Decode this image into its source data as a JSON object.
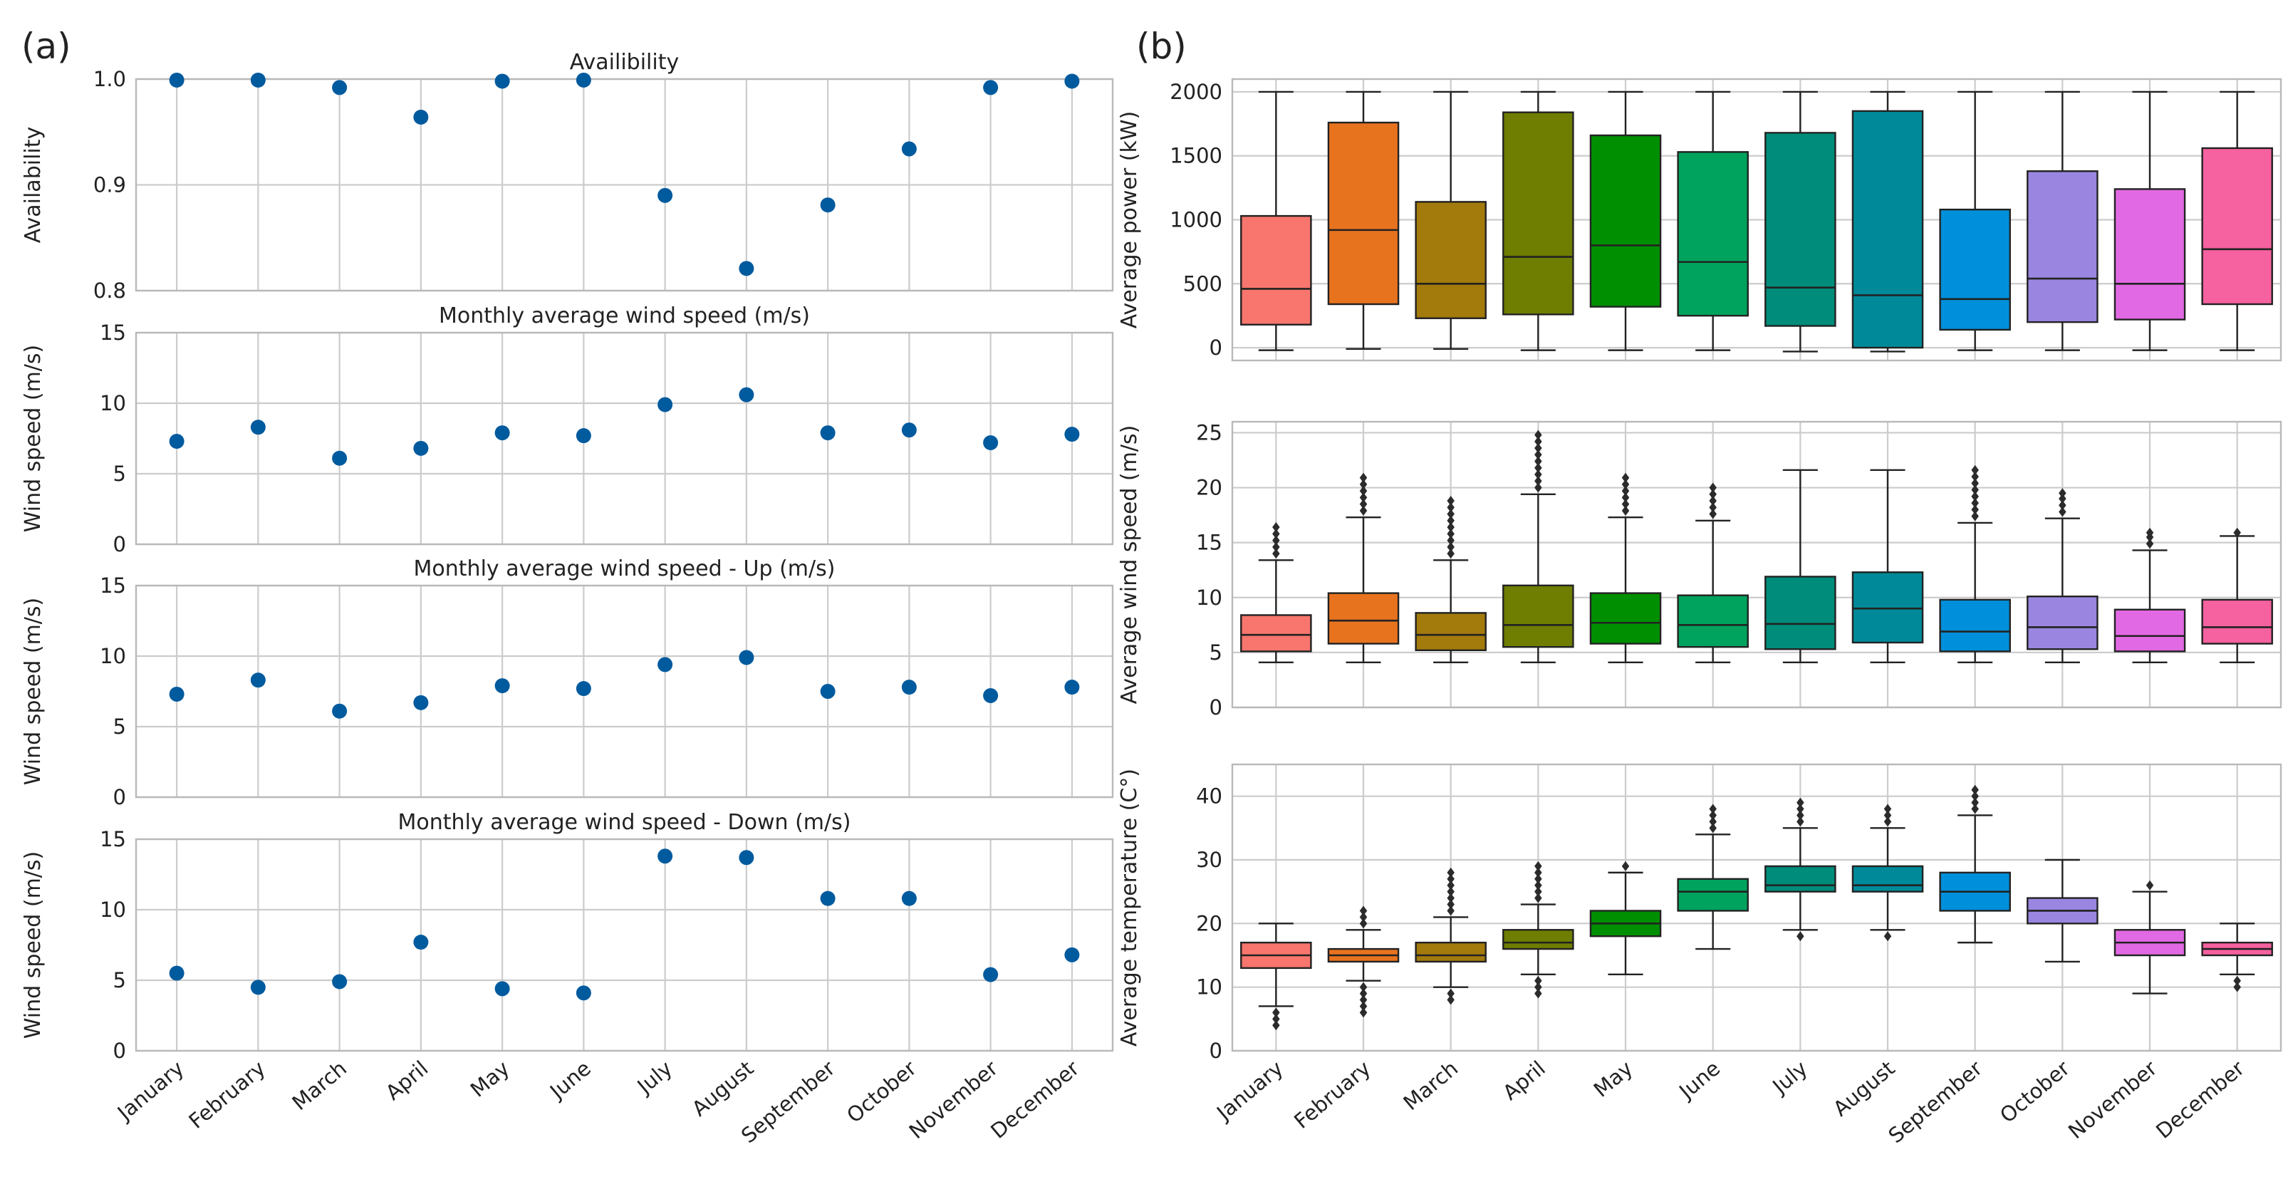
{
  "panel_labels": {
    "a": "(a)",
    "b": "(b)"
  },
  "months": [
    "January",
    "February",
    "March",
    "April",
    "May",
    "June",
    "July",
    "August",
    "September",
    "October",
    "November",
    "December"
  ],
  "chart_data": [
    {
      "id": "availability",
      "type": "scatter",
      "title": "Availibility",
      "ylabel": "Availability",
      "ylim": [
        0.8,
        1.0
      ],
      "yticks": [
        0.8,
        0.9,
        1.0
      ],
      "ytick_labels": [
        "0.8",
        "0.9",
        "1.0"
      ],
      "values": [
        0.999,
        0.999,
        0.992,
        0.964,
        0.998,
        0.999,
        0.89,
        0.821,
        0.881,
        0.934,
        0.992,
        0.998
      ],
      "color": "#005a9e"
    },
    {
      "id": "wind_speed",
      "type": "scatter",
      "title": "Monthly average wind speed (m/s)",
      "ylabel": "Wind speed (m/s)",
      "ylim": [
        0,
        15
      ],
      "yticks": [
        0,
        5,
        10,
        15
      ],
      "ytick_labels": [
        "0",
        "5",
        "10",
        "15"
      ],
      "values": [
        7.3,
        8.3,
        6.1,
        6.8,
        7.9,
        7.7,
        9.9,
        10.6,
        7.9,
        8.1,
        7.2,
        7.8
      ],
      "color": "#005a9e"
    },
    {
      "id": "wind_speed_up",
      "type": "scatter",
      "title": "Monthly average wind speed - Up (m/s)",
      "ylabel": "Wind speed (m/s)",
      "ylim": [
        0,
        15
      ],
      "yticks": [
        0,
        5,
        10,
        15
      ],
      "ytick_labels": [
        "0",
        "5",
        "10",
        "15"
      ],
      "values": [
        7.3,
        8.3,
        6.1,
        6.7,
        7.9,
        7.7,
        9.4,
        9.9,
        7.5,
        7.8,
        7.2,
        7.8
      ],
      "color": "#005a9e"
    },
    {
      "id": "wind_speed_down",
      "type": "scatter",
      "title": "Monthly average wind speed - Down (m/s)",
      "ylabel": "Wind speed (m/s)",
      "ylim": [
        0,
        15
      ],
      "yticks": [
        0,
        5,
        10,
        15
      ],
      "ytick_labels": [
        "0",
        "5",
        "10",
        "15"
      ],
      "values": [
        5.5,
        4.5,
        4.9,
        7.7,
        4.4,
        4.1,
        13.8,
        13.7,
        10.8,
        10.8,
        5.4,
        6.8
      ],
      "color": "#005a9e"
    },
    {
      "id": "power_box",
      "type": "box",
      "ylabel": "Average power (kW)",
      "ylim": [
        -100,
        2100
      ],
      "yticks": [
        0,
        500,
        1000,
        1500,
        2000
      ],
      "ytick_labels": [
        "0",
        "500",
        "1000",
        "1500",
        "2000"
      ],
      "colors": [
        "#f8766d",
        "#e8731f",
        "#a37a0c",
        "#6f7d00",
        "#008f00",
        "#00a35d",
        "#008c7a",
        "#008a99",
        "#0090db",
        "#9a86e0",
        "#e169e3",
        "#f6619f"
      ],
      "boxes": [
        {
          "whislo": -20,
          "q1": 180,
          "med": 460,
          "q3": 1030,
          "whishi": 2000,
          "fliers": []
        },
        {
          "whislo": -10,
          "q1": 340,
          "med": 920,
          "q3": 1760,
          "whishi": 2000,
          "fliers": []
        },
        {
          "whislo": -10,
          "q1": 230,
          "med": 500,
          "q3": 1140,
          "whishi": 2000,
          "fliers": []
        },
        {
          "whislo": -20,
          "q1": 260,
          "med": 710,
          "q3": 1840,
          "whishi": 2000,
          "fliers": []
        },
        {
          "whislo": -20,
          "q1": 320,
          "med": 800,
          "q3": 1660,
          "whishi": 2000,
          "fliers": []
        },
        {
          "whislo": -20,
          "q1": 250,
          "med": 670,
          "q3": 1530,
          "whishi": 2000,
          "fliers": []
        },
        {
          "whislo": -30,
          "q1": 170,
          "med": 470,
          "q3": 1680,
          "whishi": 2000,
          "fliers": []
        },
        {
          "whislo": -30,
          "q1": 0,
          "med": 410,
          "q3": 1850,
          "whishi": 2000,
          "fliers": []
        },
        {
          "whislo": -20,
          "q1": 140,
          "med": 380,
          "q3": 1080,
          "whishi": 2000,
          "fliers": []
        },
        {
          "whislo": -20,
          "q1": 200,
          "med": 540,
          "q3": 1380,
          "whishi": 2000,
          "fliers": []
        },
        {
          "whislo": -20,
          "q1": 220,
          "med": 500,
          "q3": 1240,
          "whishi": 2000,
          "fliers": []
        },
        {
          "whislo": -20,
          "q1": 340,
          "med": 770,
          "q3": 1560,
          "whishi": 2000,
          "fliers": []
        }
      ]
    },
    {
      "id": "wind_box",
      "type": "box",
      "ylabel": "Average wind speed (m/s)",
      "ylim": [
        0,
        26
      ],
      "yticks": [
        0,
        5,
        10,
        15,
        20,
        25
      ],
      "ytick_labels": [
        "0",
        "5",
        "10",
        "15",
        "20",
        "25"
      ],
      "colors": [
        "#f8766d",
        "#e8731f",
        "#a37a0c",
        "#6f7d00",
        "#008f00",
        "#00a35d",
        "#008c7a",
        "#008a99",
        "#0090db",
        "#9a86e0",
        "#e169e3",
        "#f6619f"
      ],
      "boxes": [
        {
          "whislo": 4.1,
          "q1": 5.1,
          "med": 6.6,
          "q3": 8.4,
          "whishi": 13.4,
          "fliers": [
            14.0,
            14.6,
            15.2,
            15.8,
            16.4
          ]
        },
        {
          "whislo": 4.1,
          "q1": 5.8,
          "med": 7.9,
          "q3": 10.4,
          "whishi": 17.3,
          "fliers": [
            17.9,
            18.5,
            19.1,
            19.7,
            20.3,
            20.9
          ]
        },
        {
          "whislo": 4.1,
          "q1": 5.2,
          "med": 6.6,
          "q3": 8.6,
          "whishi": 13.4,
          "fliers": [
            14.0,
            14.6,
            15.2,
            15.8,
            16.4,
            17.0,
            17.6,
            18.2,
            18.8
          ]
        },
        {
          "whislo": 4.1,
          "q1": 5.5,
          "med": 7.5,
          "q3": 11.1,
          "whishi": 19.4,
          "fliers": [
            20.0,
            20.6,
            21.2,
            21.8,
            22.4,
            23.0,
            23.6,
            24.2,
            24.8
          ]
        },
        {
          "whislo": 4.1,
          "q1": 5.8,
          "med": 7.7,
          "q3": 10.4,
          "whishi": 17.3,
          "fliers": [
            17.9,
            18.5,
            19.1,
            19.7,
            20.3,
            20.9
          ]
        },
        {
          "whislo": 4.1,
          "q1": 5.5,
          "med": 7.5,
          "q3": 10.2,
          "whishi": 17.0,
          "fliers": [
            17.6,
            18.2,
            18.8,
            19.4,
            20.0
          ]
        },
        {
          "whislo": 4.1,
          "q1": 5.3,
          "med": 7.6,
          "q3": 11.9,
          "whishi": 21.6,
          "fliers": []
        },
        {
          "whislo": 4.1,
          "q1": 5.9,
          "med": 9.0,
          "q3": 12.3,
          "whishi": 21.6,
          "fliers": []
        },
        {
          "whislo": 4.1,
          "q1": 5.1,
          "med": 6.9,
          "q3": 9.8,
          "whishi": 16.8,
          "fliers": [
            17.4,
            18.0,
            18.6,
            19.2,
            19.8,
            20.4,
            21.0,
            21.6
          ]
        },
        {
          "whislo": 4.1,
          "q1": 5.3,
          "med": 7.3,
          "q3": 10.1,
          "whishi": 17.2,
          "fliers": [
            17.8,
            18.4,
            19.0,
            19.5
          ]
        },
        {
          "whislo": 4.1,
          "q1": 5.1,
          "med": 6.5,
          "q3": 8.9,
          "whishi": 14.3,
          "fliers": [
            14.9,
            15.5,
            15.9
          ]
        },
        {
          "whislo": 4.1,
          "q1": 5.8,
          "med": 7.3,
          "q3": 9.8,
          "whishi": 15.6,
          "fliers": [
            15.9
          ]
        }
      ]
    },
    {
      "id": "temp_box",
      "type": "box",
      "ylabel": "Average temperature (C°)",
      "ylim": [
        0,
        45
      ],
      "yticks": [
        0,
        10,
        20,
        30,
        40
      ],
      "ytick_labels": [
        "0",
        "10",
        "20",
        "30",
        "40"
      ],
      "colors": [
        "#f8766d",
        "#e8731f",
        "#a37a0c",
        "#6f7d00",
        "#008f00",
        "#00a35d",
        "#008c7a",
        "#008a99",
        "#0090db",
        "#9a86e0",
        "#e169e3",
        "#f6619f"
      ],
      "boxes": [
        {
          "whislo": 7,
          "q1": 13,
          "med": 15,
          "q3": 17,
          "whishi": 20,
          "fliers": [
            6,
            5,
            4
          ]
        },
        {
          "whislo": 11,
          "q1": 14,
          "med": 15,
          "q3": 16,
          "whishi": 19,
          "fliers": [
            10,
            9,
            8,
            7,
            6,
            20,
            21,
            22
          ]
        },
        {
          "whislo": 10,
          "q1": 14,
          "med": 15,
          "q3": 17,
          "whishi": 21,
          "fliers": [
            9,
            8,
            22,
            23,
            24,
            25,
            26,
            27,
            28
          ]
        },
        {
          "whislo": 12,
          "q1": 16,
          "med": 17,
          "q3": 19,
          "whishi": 23,
          "fliers": [
            11,
            10,
            9,
            24,
            25,
            26,
            27,
            28,
            29
          ]
        },
        {
          "whislo": 12,
          "q1": 18,
          "med": 20,
          "q3": 22,
          "whishi": 28,
          "fliers": [
            29
          ]
        },
        {
          "whislo": 16,
          "q1": 22,
          "med": 25,
          "q3": 27,
          "whishi": 34,
          "fliers": [
            35,
            36,
            37,
            38
          ]
        },
        {
          "whislo": 19,
          "q1": 25,
          "med": 26,
          "q3": 29,
          "whishi": 35,
          "fliers": [
            18,
            36,
            37,
            38,
            39
          ]
        },
        {
          "whislo": 19,
          "q1": 25,
          "med": 26,
          "q3": 29,
          "whishi": 35,
          "fliers": [
            18,
            36,
            37,
            38
          ]
        },
        {
          "whislo": 17,
          "q1": 22,
          "med": 25,
          "q3": 28,
          "whishi": 37,
          "fliers": [
            38,
            39,
            40,
            41
          ]
        },
        {
          "whislo": 14,
          "q1": 20,
          "med": 22,
          "q3": 24,
          "whishi": 30,
          "fliers": []
        },
        {
          "whislo": 9,
          "q1": 15,
          "med": 17,
          "q3": 19,
          "whishi": 25,
          "fliers": [
            26
          ]
        },
        {
          "whislo": 12,
          "q1": 15,
          "med": 16,
          "q3": 17,
          "whishi": 20,
          "fliers": [
            11,
            10
          ]
        }
      ]
    }
  ]
}
